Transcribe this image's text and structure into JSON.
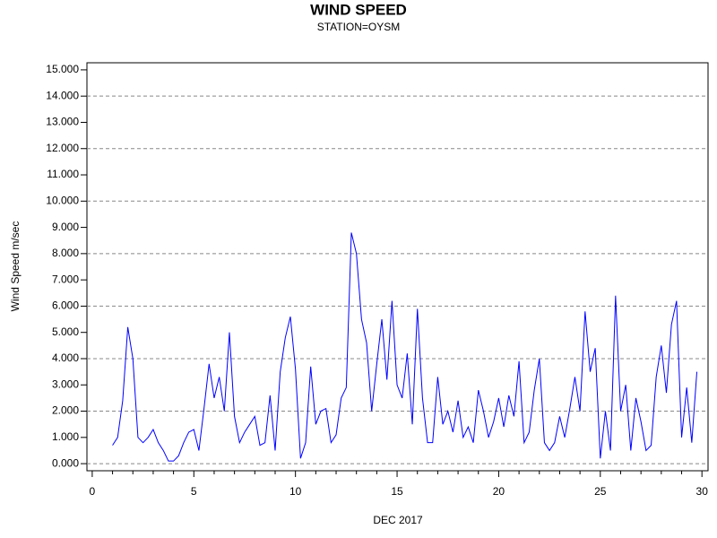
{
  "chart_data": {
    "type": "line",
    "title": "WIND SPEED",
    "subtitle": "STATION=OYSM",
    "x_label": "DEC 2017",
    "y_label": "Wind Speed m/sec",
    "x": [
      1,
      1.25,
      1.5,
      1.75,
      2,
      2.25,
      2.5,
      2.75,
      3,
      3.25,
      3.5,
      3.75,
      4,
      4.25,
      4.5,
      4.75,
      5,
      5.25,
      5.5,
      5.75,
      6,
      6.25,
      6.5,
      6.75,
      7,
      7.25,
      7.5,
      7.75,
      8,
      8.25,
      8.5,
      8.75,
      9,
      9.25,
      9.5,
      9.75,
      10,
      10.25,
      10.5,
      10.75,
      11,
      11.25,
      11.5,
      11.75,
      12,
      12.25,
      12.5,
      12.75,
      13,
      13.25,
      13.5,
      13.75,
      14,
      14.25,
      14.5,
      14.75,
      15,
      15.25,
      15.5,
      15.75,
      16,
      16.25,
      16.5,
      16.75,
      17,
      17.25,
      17.5,
      17.75,
      18,
      18.25,
      18.5,
      18.75,
      19,
      19.25,
      19.5,
      19.75,
      20,
      20.25,
      20.5,
      20.75,
      21,
      21.25,
      21.5,
      21.75,
      22,
      22.25,
      22.5,
      22.75,
      23,
      23.25,
      23.5,
      23.75,
      24,
      24.25,
      24.5,
      24.75,
      25,
      25.25,
      25.5,
      25.75,
      26,
      26.25,
      26.5,
      26.75,
      27,
      27.25,
      27.5,
      27.75,
      28,
      28.25,
      28.5,
      28.75,
      29,
      29.25,
      29.5,
      29.75
    ],
    "series": [
      {
        "name": "Wind Speed",
        "color": "#0000ff",
        "values": [
          0.7,
          1.0,
          2.4,
          5.2,
          4.0,
          1.0,
          0.8,
          1.0,
          1.3,
          0.8,
          0.5,
          0.1,
          0.1,
          0.3,
          0.8,
          1.2,
          1.3,
          0.5,
          2.1,
          3.8,
          2.5,
          3.3,
          2.0,
          5.0,
          1.8,
          0.8,
          1.2,
          1.5,
          1.8,
          0.7,
          0.8,
          2.6,
          0.5,
          3.5,
          4.8,
          5.6,
          3.6,
          0.2,
          0.8,
          3.7,
          1.5,
          2.0,
          2.1,
          0.8,
          1.1,
          2.5,
          2.9,
          8.8,
          8.0,
          5.5,
          4.6,
          2.0,
          3.8,
          5.5,
          3.2,
          6.2,
          3.0,
          2.5,
          4.2,
          1.5,
          5.9,
          2.5,
          0.8,
          0.8,
          3.3,
          1.5,
          2.0,
          1.2,
          2.4,
          1.0,
          1.4,
          0.8,
          2.8,
          2.0,
          1.0,
          1.6,
          2.5,
          1.4,
          2.6,
          1.8,
          3.9,
          0.8,
          1.2,
          2.8,
          4.0,
          0.8,
          0.5,
          0.8,
          1.8,
          1.0,
          2.1,
          3.3,
          2.0,
          5.8,
          3.5,
          4.4,
          0.2,
          2.0,
          0.5,
          6.4,
          2.0,
          3.0,
          0.5,
          2.5,
          1.6,
          0.5,
          0.7,
          3.3,
          4.5,
          2.7,
          5.3,
          6.2,
          1.0,
          2.9,
          0.8,
          3.5
        ]
      }
    ],
    "xlim": [
      -0.26,
      30.3
    ],
    "xticks": [
      0,
      5,
      10,
      15,
      20,
      25,
      30
    ],
    "xminorticks": [
      1,
      2,
      3,
      4,
      6,
      7,
      8,
      9,
      11,
      12,
      13,
      14,
      16,
      17,
      18,
      19,
      21,
      22,
      23,
      24,
      26,
      27,
      28,
      29
    ],
    "ylim": [
      -0.27,
      15.27
    ],
    "yticks": [
      {
        "value": 0,
        "label": "0.000"
      },
      {
        "value": 1,
        "label": "1.000"
      },
      {
        "value": 2,
        "label": "2.000"
      },
      {
        "value": 3,
        "label": "3.000"
      },
      {
        "value": 4,
        "label": "4.000"
      },
      {
        "value": 5,
        "label": "5.000"
      },
      {
        "value": 6,
        "label": "6.000"
      },
      {
        "value": 7,
        "label": "7.000"
      },
      {
        "value": 8,
        "label": "8.000"
      },
      {
        "value": 9,
        "label": "9.000"
      },
      {
        "value": 10,
        "label": "10.000"
      },
      {
        "value": 11,
        "label": "11.000"
      },
      {
        "value": 12,
        "label": "12.000"
      },
      {
        "value": 13,
        "label": "13.000"
      },
      {
        "value": 14,
        "label": "14.000"
      },
      {
        "value": 15,
        "label": "15.000"
      }
    ],
    "grid": true,
    "grid_step": 2
  }
}
